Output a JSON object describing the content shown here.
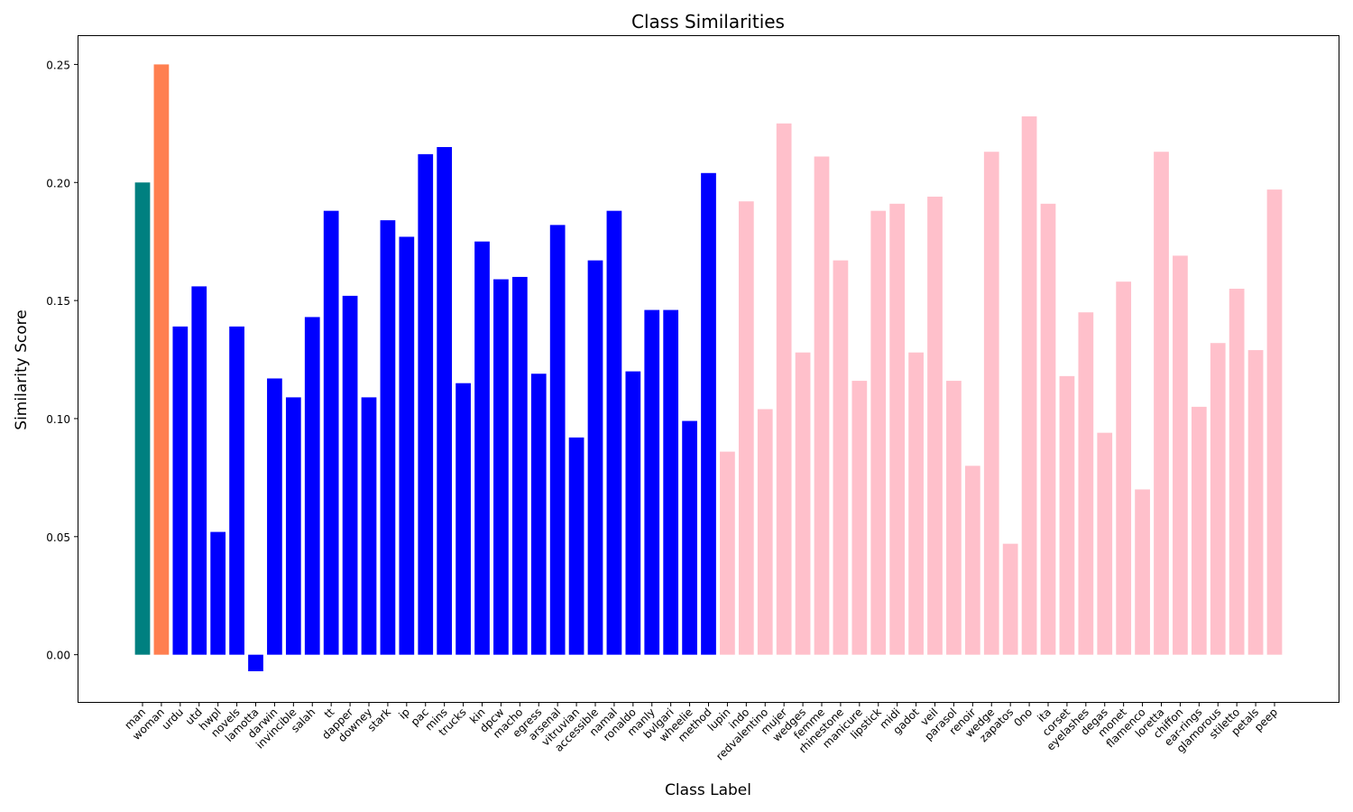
{
  "chart_data": {
    "type": "bar",
    "title": "Class Similarities",
    "xlabel": "Class Label",
    "ylabel": "Similarity Score",
    "ylim": [
      -0.02,
      0.262
    ],
    "yticks": [
      0.0,
      0.05,
      0.1,
      0.15,
      0.2,
      0.25
    ],
    "ytick_labels": [
      "0.00",
      "0.05",
      "0.10",
      "0.15",
      "0.20",
      "0.25"
    ],
    "grid": false,
    "colors": {
      "man": "#008080",
      "woman": "#FF7F50",
      "male_group": "#0000FF",
      "female_group": "#FFC0CB"
    },
    "categories": [
      "man",
      "woman",
      "urdu",
      "utd",
      "hwpl",
      "novels",
      "lamotta",
      "darwin",
      "invincible",
      "salah",
      "tt",
      "dapper",
      "downey",
      "stark",
      "ip",
      "pac",
      "mins",
      "trucks",
      "kin",
      "dpcw",
      "macho",
      "egress",
      "arsenal",
      "vitruvian",
      "accessible",
      "namal",
      "ronaldo",
      "manly",
      "bvlgari",
      "wheelie",
      "method",
      "lupin",
      "indo",
      "redvalentino",
      "mujer",
      "wedges",
      "femme",
      "rhinestone",
      "manicure",
      "lipstick",
      "midi",
      "gadot",
      "veil",
      "parasol",
      "renoir",
      "wedge",
      "zapatos",
      "0no",
      "ita",
      "corset",
      "eyelashes",
      "degas",
      "monet",
      "flamenco",
      "loretta",
      "chiffon",
      "ear-rings",
      "glamorous",
      "stiletto",
      "petals",
      "peep"
    ],
    "values": [
      0.2,
      0.25,
      0.139,
      0.156,
      0.052,
      0.139,
      -0.007,
      0.117,
      0.109,
      0.143,
      0.188,
      0.152,
      0.109,
      0.184,
      0.177,
      0.212,
      0.215,
      0.115,
      0.175,
      0.159,
      0.16,
      0.119,
      0.182,
      0.092,
      0.167,
      0.188,
      0.12,
      0.146,
      0.146,
      0.099,
      0.204,
      0.086,
      0.192,
      0.104,
      0.225,
      0.128,
      0.211,
      0.167,
      0.116,
      0.188,
      0.191,
      0.128,
      0.194,
      0.116,
      0.08,
      0.213,
      0.047,
      0.228,
      0.191,
      0.118,
      0.145,
      0.094,
      0.158,
      0.07,
      0.213,
      0.169,
      0.105,
      0.132,
      0.155,
      0.129,
      0.197
    ],
    "bar_colors": [
      "#008080",
      "#FF7F50",
      "#0000FF",
      "#0000FF",
      "#0000FF",
      "#0000FF",
      "#0000FF",
      "#0000FF",
      "#0000FF",
      "#0000FF",
      "#0000FF",
      "#0000FF",
      "#0000FF",
      "#0000FF",
      "#0000FF",
      "#0000FF",
      "#0000FF",
      "#0000FF",
      "#0000FF",
      "#0000FF",
      "#0000FF",
      "#0000FF",
      "#0000FF",
      "#0000FF",
      "#0000FF",
      "#0000FF",
      "#0000FF",
      "#0000FF",
      "#0000FF",
      "#0000FF",
      "#0000FF",
      "#FFC0CB",
      "#FFC0CB",
      "#FFC0CB",
      "#FFC0CB",
      "#FFC0CB",
      "#FFC0CB",
      "#FFC0CB",
      "#FFC0CB",
      "#FFC0CB",
      "#FFC0CB",
      "#FFC0CB",
      "#FFC0CB",
      "#FFC0CB",
      "#FFC0CB",
      "#FFC0CB",
      "#FFC0CB",
      "#FFC0CB",
      "#FFC0CB",
      "#FFC0CB",
      "#FFC0CB",
      "#FFC0CB",
      "#FFC0CB",
      "#FFC0CB",
      "#FFC0CB",
      "#FFC0CB",
      "#FFC0CB",
      "#FFC0CB",
      "#FFC0CB",
      "#FFC0CB",
      "#FFC0CB"
    ]
  }
}
